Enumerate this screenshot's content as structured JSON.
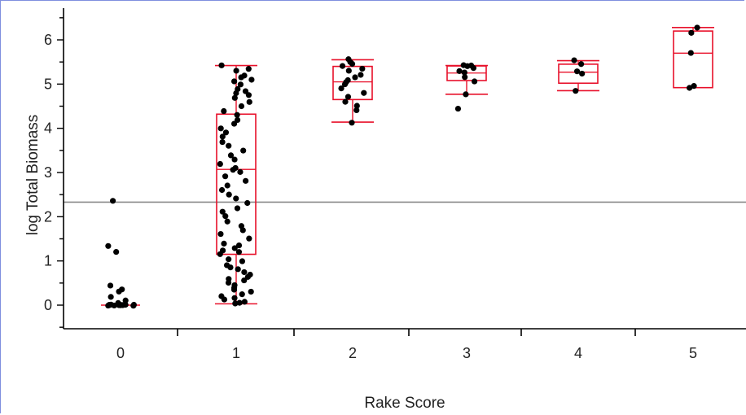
{
  "chart_data": {
    "type": "scatter",
    "subtype": "box plot with jittered points",
    "xlabel": "Rake Score",
    "ylabel": "log Total Biomass",
    "categories": [
      "0",
      "1",
      "2",
      "3",
      "4",
      "5"
    ],
    "ylim": [
      -0.5,
      6.5
    ],
    "y_ticks": [
      "0",
      "1",
      "2",
      "3",
      "4",
      "5",
      "6"
    ],
    "reference_line": 2.33,
    "colors": {
      "box": "#e8102a",
      "points": "#000000",
      "reference": "#8a8a8a",
      "axis": "#000000"
    },
    "boxes": [
      {
        "category": "0",
        "min": 0.0,
        "q1": 0.0,
        "median": 0.0,
        "q3": 0.0,
        "max": 0.0
      },
      {
        "category": "1",
        "min": 0.03,
        "q1": 1.15,
        "median": 3.07,
        "q3": 4.32,
        "max": 5.42
      },
      {
        "category": "2",
        "min": 4.14,
        "q1": 4.65,
        "median": 5.05,
        "q3": 5.4,
        "max": 5.55
      },
      {
        "category": "3",
        "min": 4.77,
        "q1": 5.08,
        "median": 5.25,
        "q3": 5.41,
        "max": 5.42
      },
      {
        "category": "4",
        "min": 4.85,
        "q1": 5.02,
        "median": 5.27,
        "q3": 5.45,
        "max": 5.53
      },
      {
        "category": "5",
        "min": 4.92,
        "q1": 4.92,
        "median": 5.7,
        "q3": 6.2,
        "max": 6.28
      }
    ],
    "points": [
      [
        0,
        0.0
      ],
      [
        0,
        0.0
      ],
      [
        0,
        0.0
      ],
      [
        0,
        0.0
      ],
      [
        0,
        0.0
      ],
      [
        0,
        0.0
      ],
      [
        0,
        0.0
      ],
      [
        0,
        0.0
      ],
      [
        0,
        0.0
      ],
      [
        0,
        0.0
      ],
      [
        0,
        0.0
      ],
      [
        0,
        0.0
      ],
      [
        0,
        0.0
      ],
      [
        0,
        0.0
      ],
      [
        0,
        0.05
      ],
      [
        0,
        0.1
      ],
      [
        0,
        0.2
      ],
      [
        0,
        0.3
      ],
      [
        0,
        0.35
      ],
      [
        0,
        0.45
      ],
      [
        0,
        1.2
      ],
      [
        0,
        1.35
      ],
      [
        0,
        2.37
      ],
      [
        1,
        0.03
      ],
      [
        1,
        0.05
      ],
      [
        1,
        0.08
      ],
      [
        1,
        0.12
      ],
      [
        1,
        0.15
      ],
      [
        1,
        0.2
      ],
      [
        1,
        0.25
      ],
      [
        1,
        0.3
      ],
      [
        1,
        0.35
      ],
      [
        1,
        0.4
      ],
      [
        1,
        0.45
      ],
      [
        1,
        0.5
      ],
      [
        1,
        0.55
      ],
      [
        1,
        0.6
      ],
      [
        1,
        0.65
      ],
      [
        1,
        0.7
      ],
      [
        1,
        0.75
      ],
      [
        1,
        0.8
      ],
      [
        1,
        0.85
      ],
      [
        1,
        0.9
      ],
      [
        1,
        1.0
      ],
      [
        1,
        1.05
      ],
      [
        1,
        1.15
      ],
      [
        1,
        1.2
      ],
      [
        1,
        1.25
      ],
      [
        1,
        1.3
      ],
      [
        1,
        1.35
      ],
      [
        1,
        1.4
      ],
      [
        1,
        1.5
      ],
      [
        1,
        1.6
      ],
      [
        1,
        1.7
      ],
      [
        1,
        1.8
      ],
      [
        1,
        1.9
      ],
      [
        1,
        2.0
      ],
      [
        1,
        2.1
      ],
      [
        1,
        2.2
      ],
      [
        1,
        2.3
      ],
      [
        1,
        2.4
      ],
      [
        1,
        2.5
      ],
      [
        1,
        2.6
      ],
      [
        1,
        2.7
      ],
      [
        1,
        2.8
      ],
      [
        1,
        2.9
      ],
      [
        1,
        3.0
      ],
      [
        1,
        3.05
      ],
      [
        1,
        3.1
      ],
      [
        1,
        3.2
      ],
      [
        1,
        3.3
      ],
      [
        1,
        3.4
      ],
      [
        1,
        3.5
      ],
      [
        1,
        3.6
      ],
      [
        1,
        3.7
      ],
      [
        1,
        3.8
      ],
      [
        1,
        3.9
      ],
      [
        1,
        4.0
      ],
      [
        1,
        4.1
      ],
      [
        1,
        4.2
      ],
      [
        1,
        4.3
      ],
      [
        1,
        4.4
      ],
      [
        1,
        4.5
      ],
      [
        1,
        4.6
      ],
      [
        1,
        4.7
      ],
      [
        1,
        4.75
      ],
      [
        1,
        4.8
      ],
      [
        1,
        4.85
      ],
      [
        1,
        4.9
      ],
      [
        1,
        5.0
      ],
      [
        1,
        5.05
      ],
      [
        1,
        5.1
      ],
      [
        1,
        5.15
      ],
      [
        1,
        5.2
      ],
      [
        1,
        5.3
      ],
      [
        1,
        5.35
      ],
      [
        1,
        5.42
      ],
      [
        2,
        4.14
      ],
      [
        2,
        4.4
      ],
      [
        2,
        4.5
      ],
      [
        2,
        4.6
      ],
      [
        2,
        4.7
      ],
      [
        2,
        4.8
      ],
      [
        2,
        4.9
      ],
      [
        2,
        5.0
      ],
      [
        2,
        5.05
      ],
      [
        2,
        5.1
      ],
      [
        2,
        5.15
      ],
      [
        2,
        5.2
      ],
      [
        2,
        5.3
      ],
      [
        2,
        5.35
      ],
      [
        2,
        5.4
      ],
      [
        2,
        5.45
      ],
      [
        2,
        5.5
      ],
      [
        2,
        5.55
      ],
      [
        3,
        4.45
      ],
      [
        3,
        4.77
      ],
      [
        3,
        5.05
      ],
      [
        3,
        5.15
      ],
      [
        3,
        5.25
      ],
      [
        3,
        5.3
      ],
      [
        3,
        5.35
      ],
      [
        3,
        5.4
      ],
      [
        3,
        5.42
      ],
      [
        3,
        5.42
      ],
      [
        4,
        4.85
      ],
      [
        4,
        5.25
      ],
      [
        4,
        5.3
      ],
      [
        4,
        5.45
      ],
      [
        4,
        5.53
      ],
      [
        5,
        4.92
      ],
      [
        5,
        4.97
      ],
      [
        5,
        5.7
      ],
      [
        5,
        6.15
      ],
      [
        5,
        6.28
      ]
    ]
  }
}
